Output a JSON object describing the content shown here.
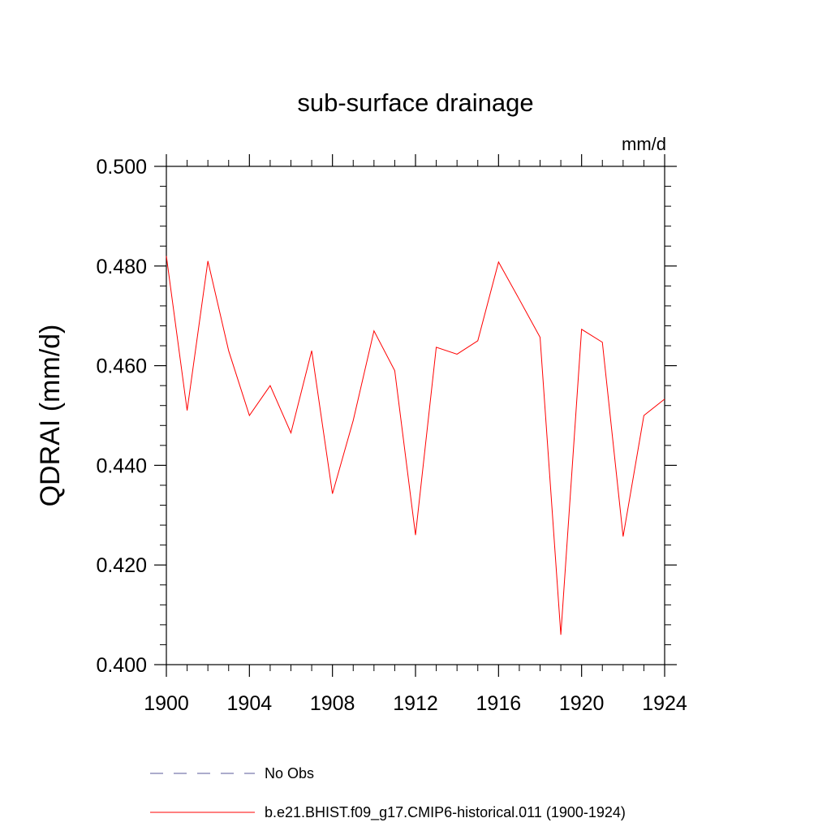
{
  "chart_data": {
    "type": "line",
    "title": "sub-surface drainage",
    "units": "mm/d",
    "ylabel": "QDRAI  (mm/d)",
    "xlabel": "",
    "xlim": [
      1900,
      1924
    ],
    "ylim": [
      0.4,
      0.5
    ],
    "x_ticks": [
      1900,
      1904,
      1908,
      1912,
      1916,
      1920,
      1924
    ],
    "x_tick_labels": [
      "1900",
      "1904",
      "1908",
      "1912",
      "1916",
      "1920",
      "1924"
    ],
    "y_ticks": [
      0.4,
      0.42,
      0.44,
      0.46,
      0.48,
      0.5
    ],
    "y_tick_labels": [
      "0.400",
      "0.420",
      "0.440",
      "0.460",
      "0.480",
      "0.500"
    ],
    "grid": false,
    "legend_placement": "bottom",
    "series": [
      {
        "name": "b.e21.BHIST.f09_g17.CMIP6-historical.011 (1900-1924)",
        "color": "#ff0000",
        "style": "solid",
        "x": [
          1900,
          1901,
          1902,
          1903,
          1904,
          1905,
          1906,
          1907,
          1908,
          1909,
          1910,
          1911,
          1912,
          1913,
          1914,
          1915,
          1916,
          1917,
          1918,
          1919,
          1920,
          1921,
          1922,
          1923,
          1924
        ],
        "y": [
          0.482,
          0.451,
          0.481,
          0.463,
          0.45,
          0.456,
          0.4465,
          0.463,
          0.4343,
          0.449,
          0.467,
          0.459,
          0.426,
          0.4637,
          0.4623,
          0.465,
          0.4808,
          0.4733,
          0.4657,
          0.406,
          0.4673,
          0.4647,
          0.4257,
          0.45,
          0.4533
        ]
      },
      {
        "name": "No Obs",
        "color": "#5a5a9a",
        "style": "dashed",
        "x": [],
        "y": []
      }
    ]
  }
}
